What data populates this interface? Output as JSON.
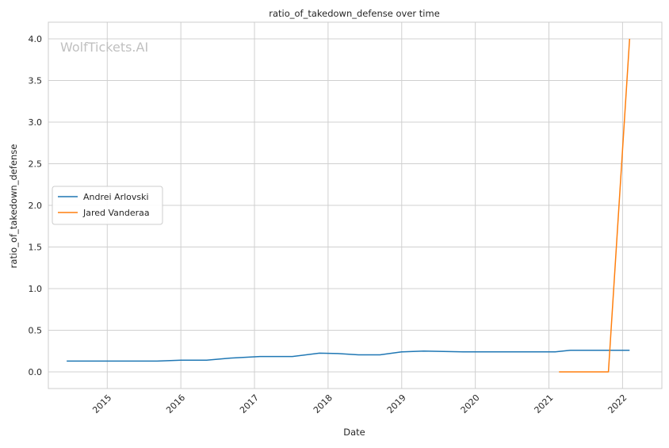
{
  "colors": {
    "andrei": "#1f77b4",
    "jared": "#ff7f0e",
    "grid": "#d0d0d0",
    "frame": "#cccccc",
    "watermark": "#c0c0c0"
  },
  "chart_data": {
    "type": "line",
    "title": "ratio_of_takedown_defense over time",
    "xlabel": "Date",
    "ylabel": "ratio_of_takedown_defense",
    "watermark": "WolfTickets.AI",
    "grid": true,
    "legend_position": "center-left",
    "x_ticks": [
      "2015",
      "2016",
      "2017",
      "2018",
      "2019",
      "2020",
      "2021",
      "2022"
    ],
    "y_ticks": [
      "0.0",
      "0.5",
      "1.0",
      "1.5",
      "2.0",
      "2.5",
      "3.0",
      "3.5",
      "4.0"
    ],
    "xlim": [
      "2014-03-15",
      "2022-07-15"
    ],
    "ylim": [
      -0.2,
      4.2
    ],
    "series": [
      {
        "name": "Andrei Arlovski",
        "color_key": "andrei",
        "points": [
          [
            "2014-06-14",
            0.13
          ],
          [
            "2015-09-05",
            0.13
          ],
          [
            "2016-01-02",
            0.14
          ],
          [
            "2016-05-08",
            0.14
          ],
          [
            "2016-09-03",
            0.165
          ],
          [
            "2017-01-28",
            0.185
          ],
          [
            "2017-07-08",
            0.185
          ],
          [
            "2017-11-19",
            0.225
          ],
          [
            "2018-02-18",
            0.22
          ],
          [
            "2018-06-01",
            0.205
          ],
          [
            "2018-09-15",
            0.205
          ],
          [
            "2019-01-01",
            0.24
          ],
          [
            "2019-04-20",
            0.25
          ],
          [
            "2019-11-02",
            0.24
          ],
          [
            "2020-06-01",
            0.24
          ],
          [
            "2021-02-01",
            0.24
          ],
          [
            "2021-04-17",
            0.26
          ],
          [
            "2021-10-30",
            0.26
          ],
          [
            "2022-02-05",
            0.26
          ]
        ]
      },
      {
        "name": "Jared Vanderaa",
        "color_key": "jared",
        "points": [
          [
            "2021-02-20",
            0.0
          ],
          [
            "2021-10-23",
            0.0
          ],
          [
            "2022-02-05",
            4.0
          ]
        ]
      }
    ]
  }
}
